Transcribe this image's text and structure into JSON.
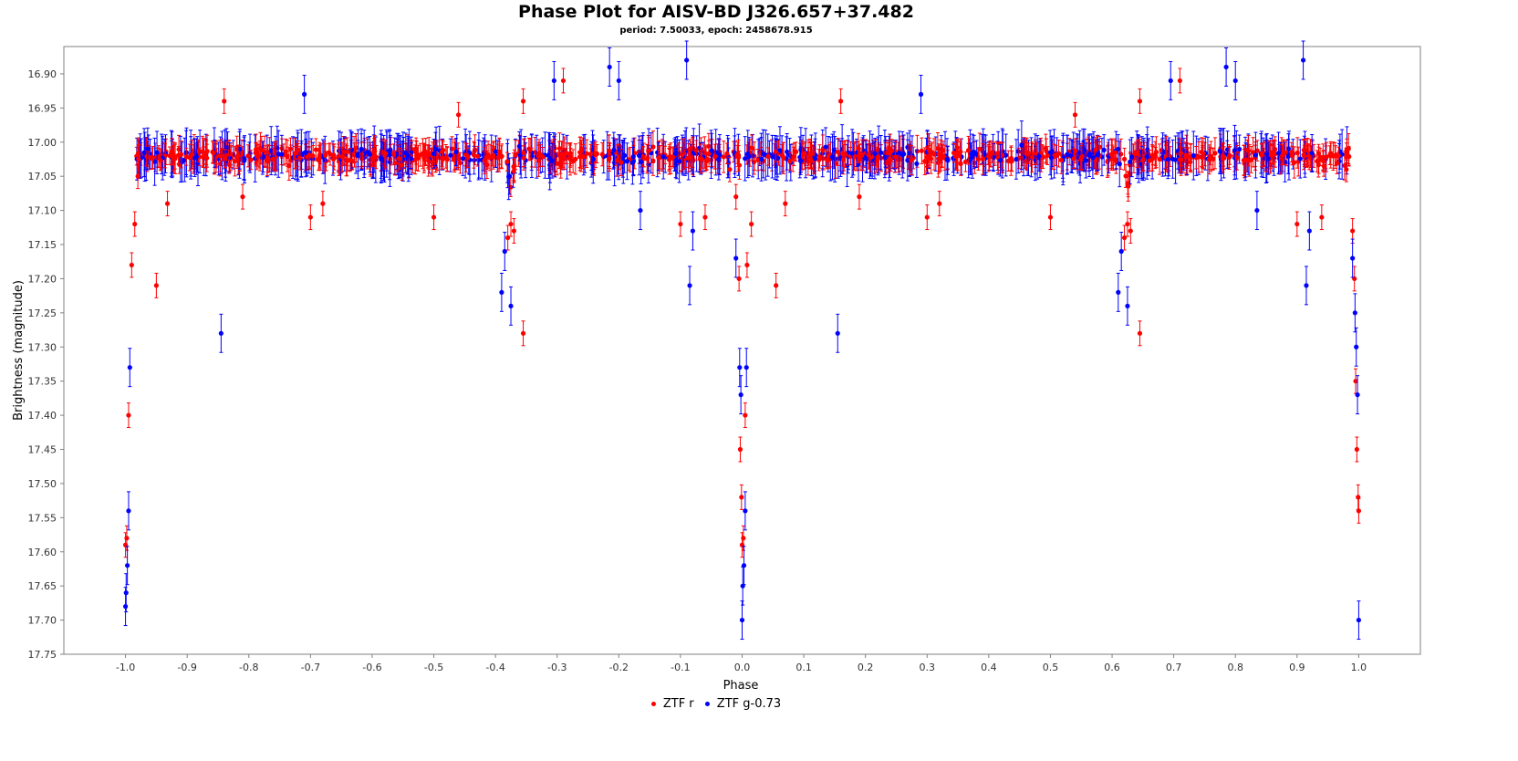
{
  "chart_data": {
    "type": "scatter",
    "title": "Phase Plot for AISV-BD J326.657+37.482",
    "subtitle": "period: 7.50033, epoch: 2458678.915",
    "xlabel": "Phase",
    "ylabel": "Brightness (magnitude)",
    "xlim": [
      -1.1,
      1.1
    ],
    "ylim": [
      17.75,
      16.86
    ],
    "y_inverted": true,
    "x_ticks": [
      "-1.0",
      "-0.9",
      "-0.8",
      "-0.7",
      "-0.6",
      "-0.5",
      "-0.4",
      "-0.3",
      "-0.2",
      "-0.1",
      "0.0",
      "0.1",
      "0.2",
      "0.3",
      "0.4",
      "0.5",
      "0.6",
      "0.7",
      "0.8",
      "0.9",
      "1.0"
    ],
    "y_ticks": [
      "16.90",
      "16.95",
      "17.00",
      "17.05",
      "17.10",
      "17.15",
      "17.20",
      "17.25",
      "17.30",
      "17.35",
      "17.40",
      "17.45",
      "17.50",
      "17.55",
      "17.60",
      "17.65",
      "17.70",
      "17.75"
    ],
    "grid": false,
    "legend_position": "bottom-center",
    "baseline_magnitude": 17.02,
    "series": [
      {
        "name": "ZTF r",
        "color": "#ff0000",
        "error": 0.018,
        "points": [
          [
            -1.0,
            17.59
          ],
          [
            -0.998,
            17.58
          ],
          [
            -0.995,
            17.4
          ],
          [
            -0.99,
            17.18
          ],
          [
            -0.985,
            17.12
          ],
          [
            -0.98,
            17.05
          ],
          [
            -0.95,
            17.21
          ],
          [
            -0.932,
            17.09
          ],
          [
            -0.84,
            16.94
          ],
          [
            -0.81,
            17.08
          ],
          [
            -0.7,
            17.11
          ],
          [
            -0.68,
            17.09
          ],
          [
            -0.5,
            17.11
          ],
          [
            -0.46,
            16.96
          ],
          [
            -0.38,
            17.14
          ],
          [
            -0.375,
            17.12
          ],
          [
            -0.37,
            17.13
          ],
          [
            -0.355,
            17.28
          ],
          [
            -0.355,
            16.94
          ],
          [
            -0.29,
            16.91
          ],
          [
            -0.1,
            17.12
          ],
          [
            -0.06,
            17.11
          ],
          [
            -0.02,
            17.04
          ],
          [
            -0.01,
            17.08
          ],
          [
            -0.005,
            17.2
          ],
          [
            -0.003,
            17.45
          ],
          [
            -0.001,
            17.52
          ],
          [
            0.0,
            17.59
          ],
          [
            0.002,
            17.58
          ],
          [
            0.005,
            17.4
          ],
          [
            0.008,
            17.18
          ],
          [
            0.015,
            17.12
          ],
          [
            0.055,
            17.21
          ],
          [
            0.07,
            17.09
          ],
          [
            0.16,
            16.94
          ],
          [
            0.19,
            17.08
          ],
          [
            0.3,
            17.11
          ],
          [
            0.32,
            17.09
          ],
          [
            0.5,
            17.11
          ],
          [
            0.54,
            16.96
          ],
          [
            0.62,
            17.14
          ],
          [
            0.625,
            17.12
          ],
          [
            0.63,
            17.13
          ],
          [
            0.645,
            17.28
          ],
          [
            0.645,
            16.94
          ],
          [
            0.71,
            16.91
          ],
          [
            0.9,
            17.12
          ],
          [
            0.94,
            17.11
          ],
          [
            0.98,
            17.04
          ],
          [
            0.99,
            17.13
          ],
          [
            0.993,
            17.2
          ],
          [
            0.995,
            17.35
          ],
          [
            0.997,
            17.45
          ],
          [
            0.999,
            17.52
          ],
          [
            1.0,
            17.54
          ]
        ]
      },
      {
        "name": "ZTF g-0.73",
        "color": "#0000ff",
        "error": 0.028,
        "points": [
          [
            -1.0,
            17.68
          ],
          [
            -0.999,
            17.66
          ],
          [
            -0.997,
            17.62
          ],
          [
            -0.995,
            17.54
          ],
          [
            -0.993,
            17.33
          ],
          [
            -0.845,
            17.28
          ],
          [
            -0.71,
            16.93
          ],
          [
            -0.39,
            17.22
          ],
          [
            -0.385,
            17.16
          ],
          [
            -0.375,
            17.24
          ],
          [
            -0.305,
            16.91
          ],
          [
            -0.215,
            16.89
          ],
          [
            -0.2,
            16.91
          ],
          [
            -0.165,
            17.1
          ],
          [
            -0.09,
            16.88
          ],
          [
            -0.085,
            17.21
          ],
          [
            -0.08,
            17.13
          ],
          [
            -0.01,
            17.17
          ],
          [
            -0.004,
            17.33
          ],
          [
            -0.002,
            17.37
          ],
          [
            0.0,
            17.7
          ],
          [
            0.001,
            17.65
          ],
          [
            0.003,
            17.62
          ],
          [
            0.005,
            17.54
          ],
          [
            0.007,
            17.33
          ],
          [
            0.155,
            17.28
          ],
          [
            0.29,
            16.93
          ],
          [
            0.61,
            17.22
          ],
          [
            0.615,
            17.16
          ],
          [
            0.625,
            17.24
          ],
          [
            0.695,
            16.91
          ],
          [
            0.785,
            16.89
          ],
          [
            0.8,
            16.91
          ],
          [
            0.835,
            17.1
          ],
          [
            0.91,
            16.88
          ],
          [
            0.915,
            17.21
          ],
          [
            0.92,
            17.13
          ],
          [
            0.99,
            17.17
          ],
          [
            0.994,
            17.25
          ],
          [
            0.996,
            17.3
          ],
          [
            0.998,
            17.37
          ],
          [
            1.0,
            17.7
          ]
        ]
      }
    ]
  }
}
